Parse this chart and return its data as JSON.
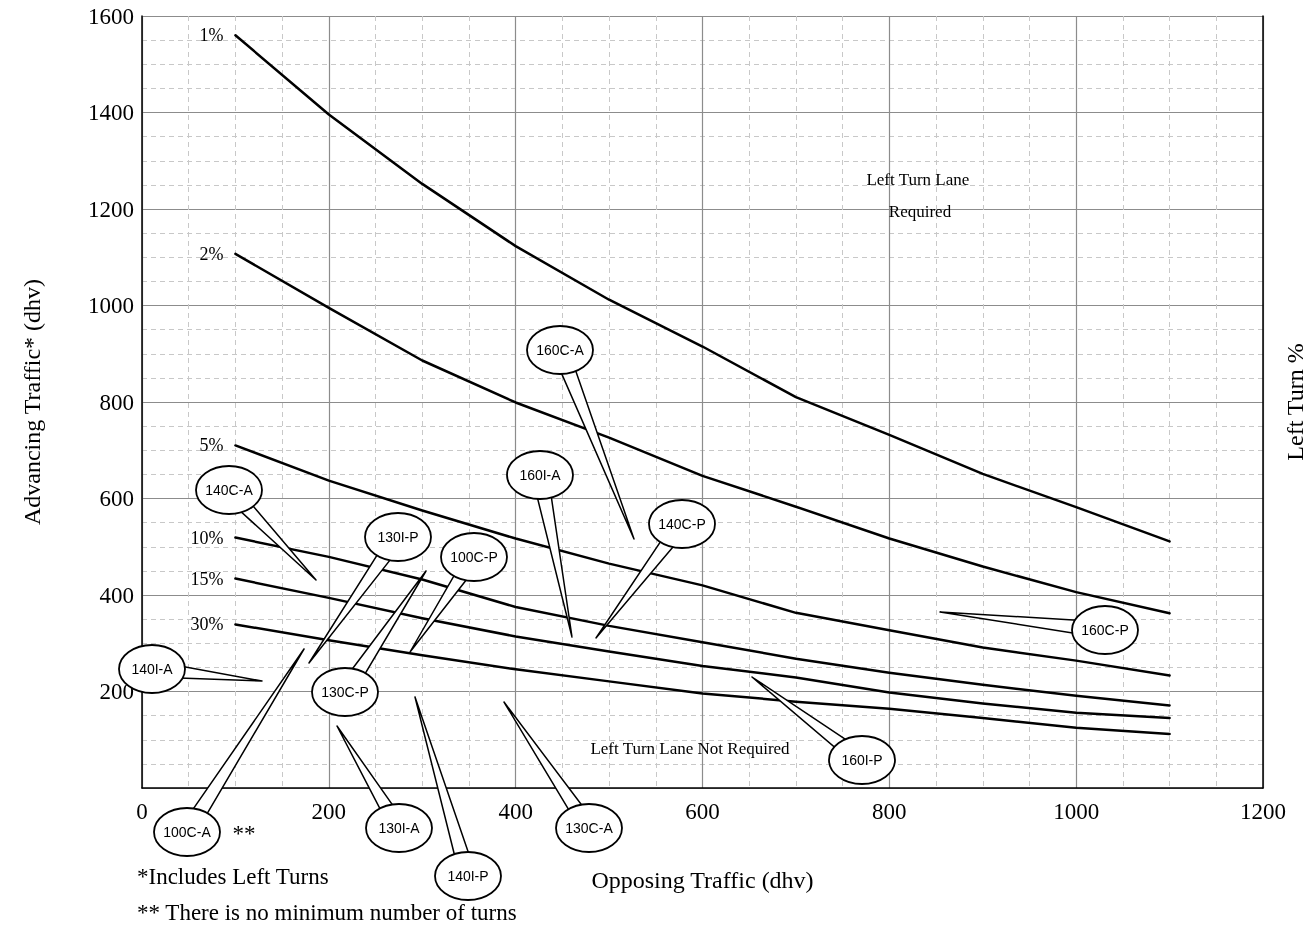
{
  "chart_data": {
    "type": "line",
    "xlabel": "Opposing Traffic (dhv)",
    "ylabel": "Advancing Traffic* (dhv)",
    "y2label": "Left Turn %",
    "x": [
      100,
      200,
      300,
      400,
      500,
      600,
      700,
      800,
      900,
      1000,
      1100
    ],
    "series": [
      {
        "name": "1%",
        "color": "#000000",
        "values": [
          1560,
          1396,
          1252,
          1123,
          1012,
          915,
          810,
          732,
          651,
          582,
          511
        ]
      },
      {
        "name": "2%",
        "color": "#000000",
        "values": [
          1107,
          995,
          886,
          799,
          726,
          647,
          583,
          517,
          459,
          406,
          362
        ]
      },
      {
        "name": "5%",
        "color": "#000000",
        "values": [
          710,
          637,
          575,
          517,
          465,
          420,
          363,
          327,
          291,
          264,
          233
        ]
      },
      {
        "name": "10%",
        "color": "#000000",
        "values": [
          519,
          479,
          432,
          375,
          336,
          302,
          268,
          239,
          214,
          191,
          171
        ]
      },
      {
        "name": "15%",
        "color": "#000000",
        "values": [
          434,
          394,
          352,
          314,
          283,
          253,
          229,
          198,
          175,
          156,
          145
        ]
      },
      {
        "name": "30%",
        "color": "#000000",
        "values": [
          339,
          306,
          275,
          246,
          221,
          196,
          179,
          164,
          145,
          125,
          112
        ]
      }
    ],
    "xlim": [
      0,
      1200
    ],
    "xticks": [
      0,
      200,
      400,
      600,
      800,
      1000,
      1200
    ],
    "ylim": [
      0,
      1600
    ],
    "yticks": [
      {
        "value": 0,
        "label": null
      },
      200,
      400,
      600,
      800,
      1000,
      1200,
      1400,
      1600
    ],
    "grid": true,
    "legend": false,
    "marker": "none",
    "line_style": "solid",
    "annotations": [
      "160C-A",
      "160I-A",
      "140C-A",
      "130I-P",
      "100C-A",
      "100C-P",
      "130C-P",
      "140I-A",
      "130I-A",
      "140I-P",
      "130C-A",
      "140C-P",
      "160C-P",
      "160I-P",
      "Left Turn Lane Required",
      "Left Turn Lane Not Required",
      "**",
      "*Includes Left Turns",
      "** There is no minimum number of turns"
    ]
  }
}
